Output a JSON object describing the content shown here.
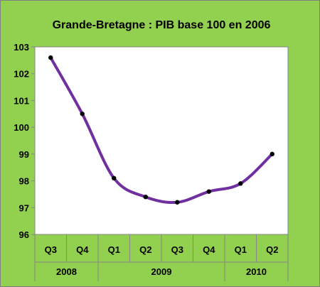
{
  "chart_data": {
    "type": "line",
    "title": "Grande-Bretagne : PIB base 100 en 2006",
    "xlabel": "",
    "ylabel": "",
    "categories": [
      "Q3",
      "Q4",
      "Q1",
      "Q2",
      "Q3",
      "Q4",
      "Q1",
      "Q2"
    ],
    "groups": [
      {
        "label": "2008",
        "span": 2
      },
      {
        "label": "2009",
        "span": 4
      },
      {
        "label": "2010",
        "span": 2
      }
    ],
    "series": [
      {
        "values": [
          102.6,
          100.5,
          98.1,
          97.4,
          97.2,
          97.6,
          97.9,
          99.0
        ]
      }
    ],
    "ylim": [
      96,
      103
    ],
    "yticks": [
      "96",
      "97",
      "98",
      "99",
      "100",
      "101",
      "102",
      "103"
    ],
    "grid": false,
    "legend": "none",
    "colors": {
      "background": "#92d050",
      "plot_area": "#ffffff",
      "line": "#7030a0",
      "marker": "#000000"
    }
  }
}
